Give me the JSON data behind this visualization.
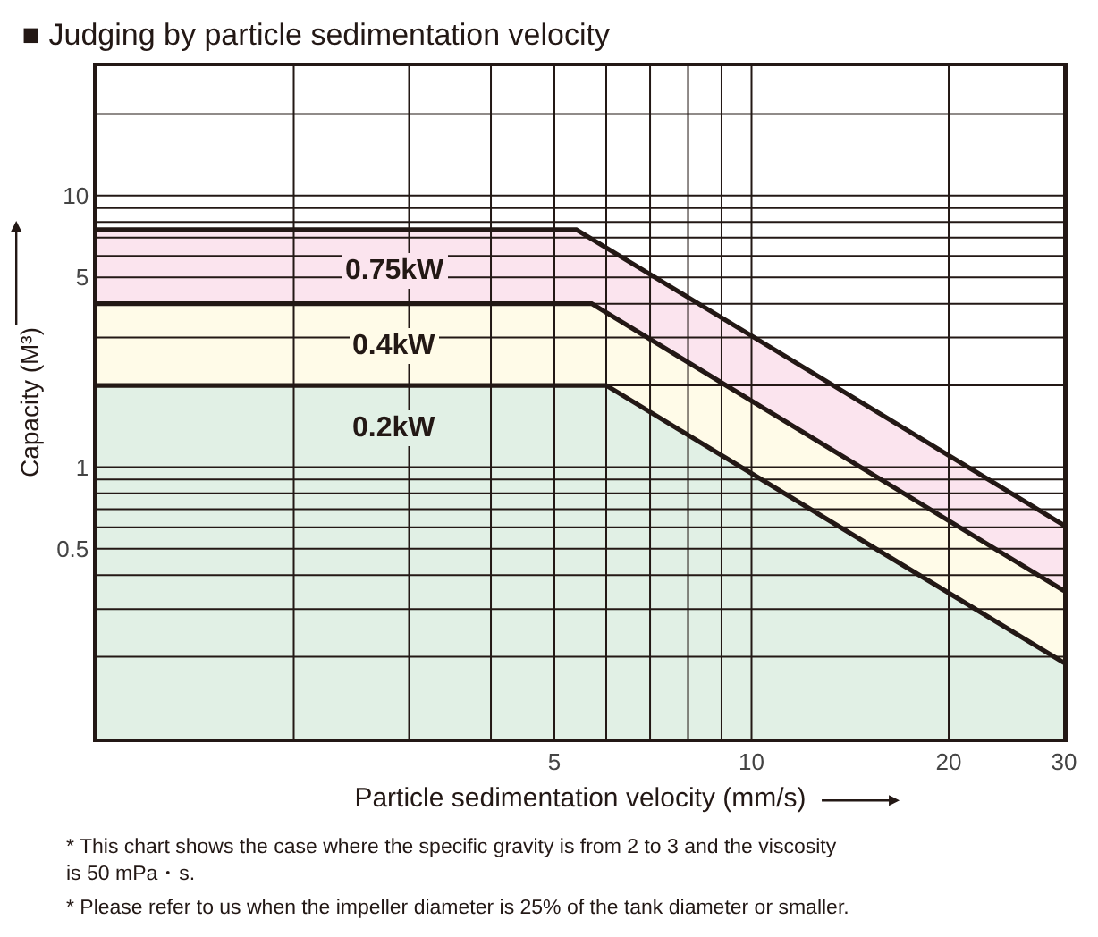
{
  "chart_data": {
    "type": "area",
    "title": "■ Judging by particle sedimentation velocity",
    "xlabel": "Particle sedimentation velocity (mm/s)",
    "ylabel": "Capacity (M³)",
    "log": "xy",
    "grid": true,
    "legend": false,
    "line_style": "solid",
    "marker": "none",
    "xlim": [
      1,
      30
    ],
    "xticks": [
      {
        "value": 2,
        "label": null
      },
      {
        "value": 3,
        "label": null
      },
      {
        "value": 4,
        "label": null
      },
      5,
      {
        "value": 6,
        "label": null
      },
      {
        "value": 7,
        "label": null
      },
      {
        "value": 8,
        "label": null
      },
      {
        "value": 9,
        "label": null
      },
      10,
      20,
      30
    ],
    "ylim": [
      0.1,
      30
    ],
    "yticks": [
      {
        "value": 0.2,
        "label": null
      },
      {
        "value": 0.3,
        "label": null
      },
      {
        "value": 0.4,
        "label": null
      },
      0.5,
      {
        "value": 0.6,
        "label": null
      },
      {
        "value": 0.7,
        "label": null
      },
      {
        "value": 0.8,
        "label": null
      },
      {
        "value": 0.9,
        "label": null
      },
      1,
      {
        "value": 2,
        "label": null
      },
      {
        "value": 3,
        "label": null
      },
      {
        "value": 4,
        "label": null
      },
      5,
      {
        "value": 6,
        "label": null
      },
      {
        "value": 7,
        "label": null
      },
      {
        "value": 8,
        "label": null
      },
      {
        "value": 9,
        "label": null
      },
      10,
      {
        "value": 20,
        "label": null
      }
    ],
    "series": [
      {
        "name": "0.75kW",
        "color": "#fbe4ee",
        "x": [
          1,
          5.4,
          30
        ],
        "values": [
          7.5,
          7.5,
          0.61
        ]
      },
      {
        "name": "0.4kW",
        "color": "#fffbe8",
        "x": [
          1,
          5.7,
          30
        ],
        "values": [
          4,
          4,
          0.35
        ]
      },
      {
        "name": "0.2kW",
        "color": "#e1f0e5",
        "x": [
          1,
          6,
          30
        ],
        "values": [
          2,
          2,
          0.19
        ]
      }
    ],
    "annotations": [
      "* This chart shows the case where the specific gravity is from 2 to 3 and the viscosity\nis 50 mPa・s.",
      "* Please refer to us when the impeller diameter is 25% of the tank diameter or smaller."
    ]
  }
}
